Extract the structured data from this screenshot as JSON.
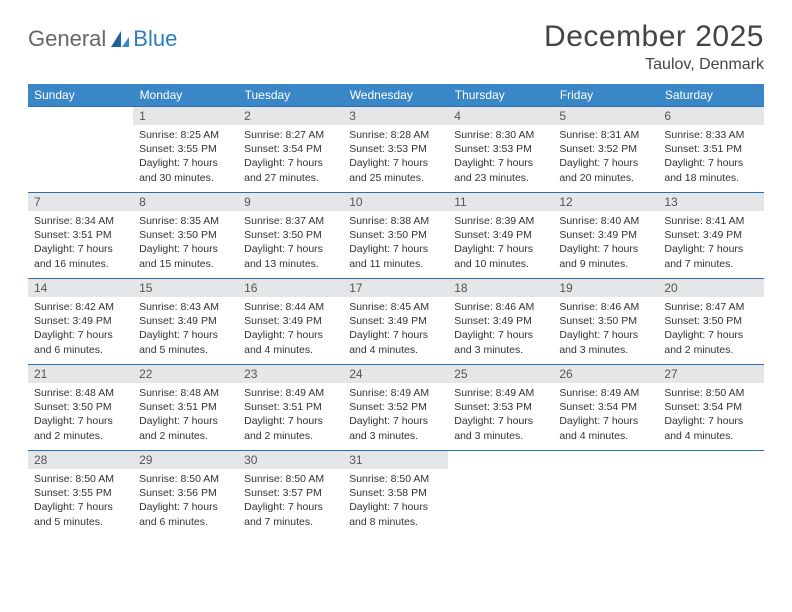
{
  "brand": {
    "part1": "General",
    "part2": "Blue"
  },
  "title": "December 2025",
  "location": "Taulov, Denmark",
  "colors": {
    "header_bg": "#3a87c8",
    "header_text": "#ffffff",
    "daynum_bg": "#e4e6e8",
    "row_border": "#2f6ea8",
    "text": "#333333",
    "logo_gray": "#666666",
    "logo_blue": "#2f7bbf"
  },
  "weekdays": [
    "Sunday",
    "Monday",
    "Tuesday",
    "Wednesday",
    "Thursday",
    "Friday",
    "Saturday"
  ],
  "weeks": [
    [
      null,
      {
        "n": "1",
        "sr": "Sunrise: 8:25 AM",
        "ss": "Sunset: 3:55 PM",
        "dl": "Daylight: 7 hours and 30 minutes."
      },
      {
        "n": "2",
        "sr": "Sunrise: 8:27 AM",
        "ss": "Sunset: 3:54 PM",
        "dl": "Daylight: 7 hours and 27 minutes."
      },
      {
        "n": "3",
        "sr": "Sunrise: 8:28 AM",
        "ss": "Sunset: 3:53 PM",
        "dl": "Daylight: 7 hours and 25 minutes."
      },
      {
        "n": "4",
        "sr": "Sunrise: 8:30 AM",
        "ss": "Sunset: 3:53 PM",
        "dl": "Daylight: 7 hours and 23 minutes."
      },
      {
        "n": "5",
        "sr": "Sunrise: 8:31 AM",
        "ss": "Sunset: 3:52 PM",
        "dl": "Daylight: 7 hours and 20 minutes."
      },
      {
        "n": "6",
        "sr": "Sunrise: 8:33 AM",
        "ss": "Sunset: 3:51 PM",
        "dl": "Daylight: 7 hours and 18 minutes."
      }
    ],
    [
      {
        "n": "7",
        "sr": "Sunrise: 8:34 AM",
        "ss": "Sunset: 3:51 PM",
        "dl": "Daylight: 7 hours and 16 minutes."
      },
      {
        "n": "8",
        "sr": "Sunrise: 8:35 AM",
        "ss": "Sunset: 3:50 PM",
        "dl": "Daylight: 7 hours and 15 minutes."
      },
      {
        "n": "9",
        "sr": "Sunrise: 8:37 AM",
        "ss": "Sunset: 3:50 PM",
        "dl": "Daylight: 7 hours and 13 minutes."
      },
      {
        "n": "10",
        "sr": "Sunrise: 8:38 AM",
        "ss": "Sunset: 3:50 PM",
        "dl": "Daylight: 7 hours and 11 minutes."
      },
      {
        "n": "11",
        "sr": "Sunrise: 8:39 AM",
        "ss": "Sunset: 3:49 PM",
        "dl": "Daylight: 7 hours and 10 minutes."
      },
      {
        "n": "12",
        "sr": "Sunrise: 8:40 AM",
        "ss": "Sunset: 3:49 PM",
        "dl": "Daylight: 7 hours and 9 minutes."
      },
      {
        "n": "13",
        "sr": "Sunrise: 8:41 AM",
        "ss": "Sunset: 3:49 PM",
        "dl": "Daylight: 7 hours and 7 minutes."
      }
    ],
    [
      {
        "n": "14",
        "sr": "Sunrise: 8:42 AM",
        "ss": "Sunset: 3:49 PM",
        "dl": "Daylight: 7 hours and 6 minutes."
      },
      {
        "n": "15",
        "sr": "Sunrise: 8:43 AM",
        "ss": "Sunset: 3:49 PM",
        "dl": "Daylight: 7 hours and 5 minutes."
      },
      {
        "n": "16",
        "sr": "Sunrise: 8:44 AM",
        "ss": "Sunset: 3:49 PM",
        "dl": "Daylight: 7 hours and 4 minutes."
      },
      {
        "n": "17",
        "sr": "Sunrise: 8:45 AM",
        "ss": "Sunset: 3:49 PM",
        "dl": "Daylight: 7 hours and 4 minutes."
      },
      {
        "n": "18",
        "sr": "Sunrise: 8:46 AM",
        "ss": "Sunset: 3:49 PM",
        "dl": "Daylight: 7 hours and 3 minutes."
      },
      {
        "n": "19",
        "sr": "Sunrise: 8:46 AM",
        "ss": "Sunset: 3:50 PM",
        "dl": "Daylight: 7 hours and 3 minutes."
      },
      {
        "n": "20",
        "sr": "Sunrise: 8:47 AM",
        "ss": "Sunset: 3:50 PM",
        "dl": "Daylight: 7 hours and 2 minutes."
      }
    ],
    [
      {
        "n": "21",
        "sr": "Sunrise: 8:48 AM",
        "ss": "Sunset: 3:50 PM",
        "dl": "Daylight: 7 hours and 2 minutes."
      },
      {
        "n": "22",
        "sr": "Sunrise: 8:48 AM",
        "ss": "Sunset: 3:51 PM",
        "dl": "Daylight: 7 hours and 2 minutes."
      },
      {
        "n": "23",
        "sr": "Sunrise: 8:49 AM",
        "ss": "Sunset: 3:51 PM",
        "dl": "Daylight: 7 hours and 2 minutes."
      },
      {
        "n": "24",
        "sr": "Sunrise: 8:49 AM",
        "ss": "Sunset: 3:52 PM",
        "dl": "Daylight: 7 hours and 3 minutes."
      },
      {
        "n": "25",
        "sr": "Sunrise: 8:49 AM",
        "ss": "Sunset: 3:53 PM",
        "dl": "Daylight: 7 hours and 3 minutes."
      },
      {
        "n": "26",
        "sr": "Sunrise: 8:49 AM",
        "ss": "Sunset: 3:54 PM",
        "dl": "Daylight: 7 hours and 4 minutes."
      },
      {
        "n": "27",
        "sr": "Sunrise: 8:50 AM",
        "ss": "Sunset: 3:54 PM",
        "dl": "Daylight: 7 hours and 4 minutes."
      }
    ],
    [
      {
        "n": "28",
        "sr": "Sunrise: 8:50 AM",
        "ss": "Sunset: 3:55 PM",
        "dl": "Daylight: 7 hours and 5 minutes."
      },
      {
        "n": "29",
        "sr": "Sunrise: 8:50 AM",
        "ss": "Sunset: 3:56 PM",
        "dl": "Daylight: 7 hours and 6 minutes."
      },
      {
        "n": "30",
        "sr": "Sunrise: 8:50 AM",
        "ss": "Sunset: 3:57 PM",
        "dl": "Daylight: 7 hours and 7 minutes."
      },
      {
        "n": "31",
        "sr": "Sunrise: 8:50 AM",
        "ss": "Sunset: 3:58 PM",
        "dl": "Daylight: 7 hours and 8 minutes."
      },
      null,
      null,
      null
    ]
  ]
}
